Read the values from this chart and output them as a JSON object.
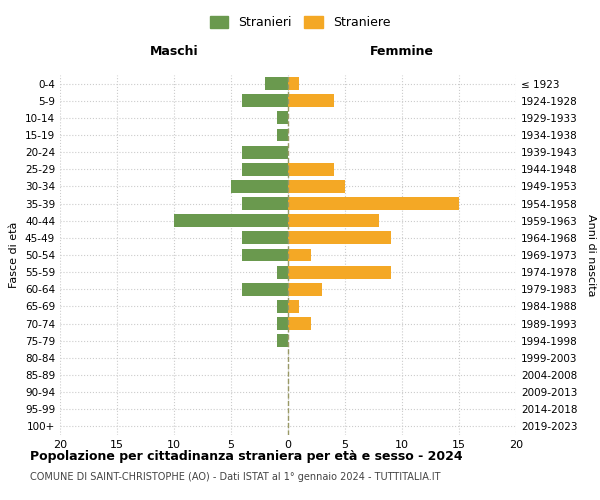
{
  "age_groups": [
    "0-4",
    "5-9",
    "10-14",
    "15-19",
    "20-24",
    "25-29",
    "30-34",
    "35-39",
    "40-44",
    "45-49",
    "50-54",
    "55-59",
    "60-64",
    "65-69",
    "70-74",
    "75-79",
    "80-84",
    "85-89",
    "90-94",
    "95-99",
    "100+"
  ],
  "birth_years": [
    "2019-2023",
    "2014-2018",
    "2009-2013",
    "2004-2008",
    "1999-2003",
    "1994-1998",
    "1989-1993",
    "1984-1988",
    "1979-1983",
    "1974-1978",
    "1969-1973",
    "1964-1968",
    "1959-1963",
    "1954-1958",
    "1949-1953",
    "1944-1948",
    "1939-1943",
    "1934-1938",
    "1929-1933",
    "1924-1928",
    "≤ 1923"
  ],
  "maschi": [
    2,
    4,
    1,
    1,
    4,
    4,
    5,
    4,
    10,
    4,
    4,
    1,
    4,
    1,
    1,
    1,
    0,
    0,
    0,
    0,
    0
  ],
  "femmine": [
    1,
    4,
    0,
    0,
    0,
    4,
    5,
    15,
    8,
    9,
    2,
    9,
    3,
    1,
    2,
    0,
    0,
    0,
    0,
    0,
    0
  ],
  "color_maschi": "#6a994e",
  "color_femmine": "#f4a825",
  "title": "Popolazione per cittadinanza straniera per età e sesso - 2024",
  "subtitle": "COMUNE DI SAINT-CHRISTOPHE (AO) - Dati ISTAT al 1° gennaio 2024 - TUTTITALIA.IT",
  "xlabel_left": "Maschi",
  "xlabel_right": "Femmine",
  "ylabel_left": "Fasce di età",
  "ylabel_right": "Anni di nascita",
  "legend_stranieri": "Stranieri",
  "legend_straniere": "Straniere",
  "xlim": 20,
  "background_color": "#ffffff",
  "grid_color": "#cccccc"
}
